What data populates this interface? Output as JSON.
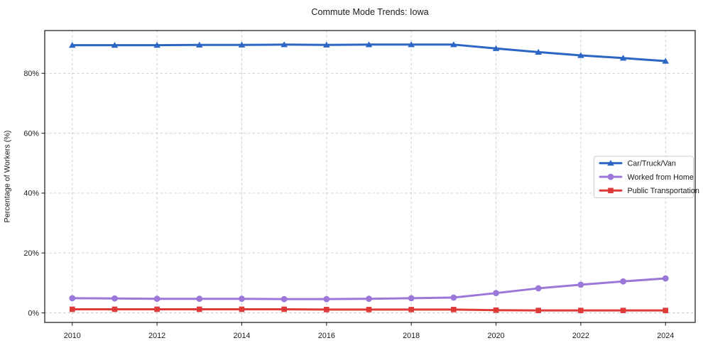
{
  "figure": {
    "title": "Commute Mode Trends: Iowa",
    "ylabel": "Percentage of Workers (%)"
  },
  "colors": {
    "background": "#ffffff",
    "grid": "#cccccc",
    "spine": "#262626",
    "text": "#1a1a1a",
    "legend_bg": "#ffffff",
    "legend_border": "#cccccc",
    "car_truck_van": "#2b66c4",
    "worked_from_home": "#9b78d8",
    "public_transportation": "#df3a3a"
  },
  "chart_data": {
    "type": "line",
    "title": "Commute Mode Trends: Iowa",
    "xlabel": "",
    "ylabel": "Percentage of Workers (%)",
    "x": [
      2010,
      2011,
      2012,
      2013,
      2014,
      2015,
      2016,
      2017,
      2018,
      2019,
      2020,
      2021,
      2022,
      2023,
      2024
    ],
    "series": [
      {
        "name": "Car/Truck/Van",
        "color": "#2b66c4",
        "marker": "triangle",
        "values": [
          89.4,
          89.4,
          89.4,
          89.5,
          89.5,
          89.6,
          89.5,
          89.6,
          89.6,
          89.6,
          88.3,
          87.1,
          86.0,
          85.1,
          84.1
        ]
      },
      {
        "name": "Worked from Home",
        "color": "#9b78d8",
        "marker": "circle",
        "values": [
          4.9,
          4.8,
          4.7,
          4.7,
          4.7,
          4.6,
          4.6,
          4.7,
          4.9,
          5.1,
          6.6,
          8.2,
          9.4,
          10.5,
          11.5
        ]
      },
      {
        "name": "Public Transportation",
        "color": "#df3a3a",
        "marker": "square",
        "values": [
          1.2,
          1.2,
          1.2,
          1.2,
          1.2,
          1.2,
          1.1,
          1.1,
          1.1,
          1.1,
          0.9,
          0.8,
          0.8,
          0.8,
          0.8
        ]
      }
    ],
    "xticks": [
      2010,
      2012,
      2014,
      2016,
      2018,
      2020,
      2022,
      2024
    ],
    "xtick_labels": [
      "2010",
      "2012",
      "2014",
      "2016",
      "2018",
      "2020",
      "2022",
      "2024"
    ],
    "yticks": [
      0,
      20,
      40,
      60,
      80
    ],
    "ytick_labels": [
      "0%",
      "20%",
      "40%",
      "60%",
      "80%"
    ],
    "xlim": [
      2009.35,
      2024.7
    ],
    "ylim": [
      -3.2,
      94.3
    ],
    "grid": true,
    "grid_style": "dashed",
    "legend_position": "center-right",
    "legend": [
      "Car/Truck/Van",
      "Worked from Home",
      "Public Transportation"
    ]
  }
}
